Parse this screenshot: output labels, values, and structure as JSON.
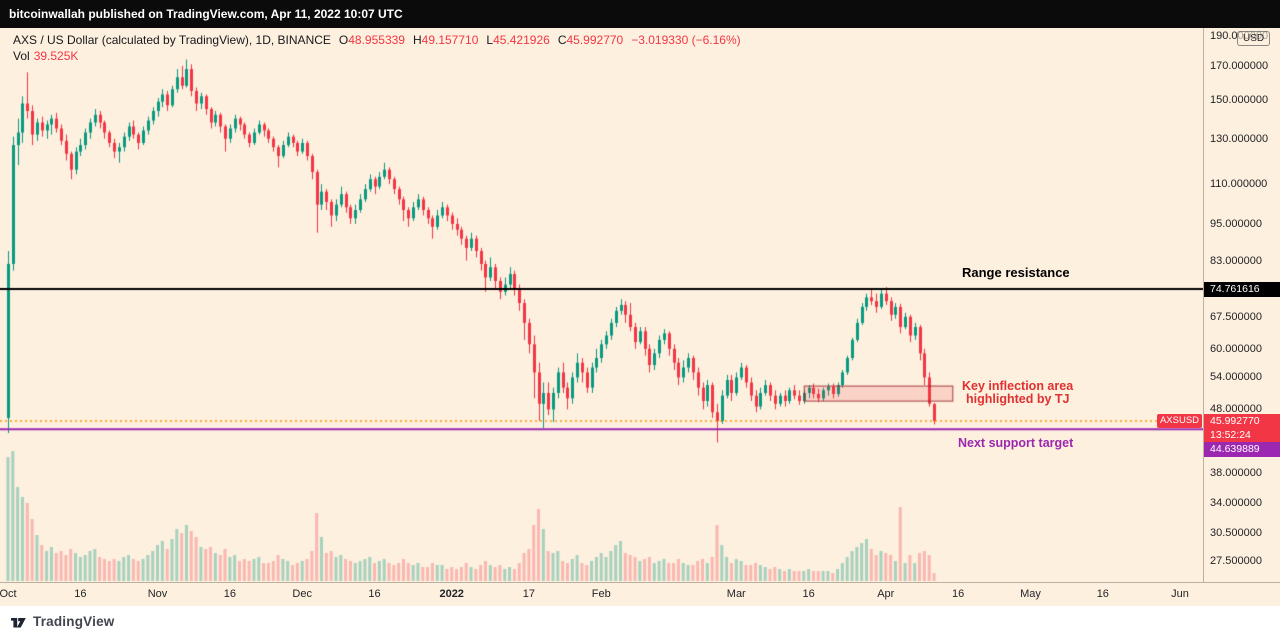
{
  "topbar": {
    "text": "bitcoinwallah published on TradingView.com, Apr 11, 2022 10:07 UTC"
  },
  "header": {
    "symbol": "AXS / US Dollar (calculated by TradingView), 1D, BINANCE",
    "o_label": "O",
    "o_value": "48.955339",
    "h_label": "H",
    "h_value": "49.157710",
    "l_label": "L",
    "l_value": "45.421926",
    "c_label": "C",
    "c_value": "45.992770",
    "change": "−3.019330 (−6.16%)",
    "vol_label": "Vol",
    "vol_value": "39.525K"
  },
  "footer": {
    "brand": "TradingView"
  },
  "chart_data": {
    "type": "candlestick",
    "symbol": "AXSUSD",
    "exchange": "BINANCE",
    "interval": "1D",
    "scale": "logarithmic",
    "x_unit": "days since 2021-10-01",
    "visible_price_range": [
      25.6,
      199.7
    ],
    "colors": {
      "up": "#089981",
      "down": "#f23645",
      "volume_up": "rgba(8,153,129,0.35)",
      "volume_down": "rgba(242,54,69,0.30)",
      "background": "#fdf0df"
    },
    "price_axis": {
      "currency": "USD",
      "ticks": [
        190,
        170,
        150,
        130,
        110,
        95,
        83,
        67.5,
        60,
        54,
        48,
        38,
        34,
        30.5,
        27.5
      ]
    },
    "time_axis": {
      "ticks": [
        {
          "label": "Oct",
          "day": 0
        },
        {
          "label": "16",
          "day": 15
        },
        {
          "label": "Nov",
          "day": 31
        },
        {
          "label": "16",
          "day": 46
        },
        {
          "label": "Dec",
          "day": 61
        },
        {
          "label": "16",
          "day": 76
        },
        {
          "label": "2022",
          "day": 92,
          "bold": true
        },
        {
          "label": "17",
          "day": 108
        },
        {
          "label": "Feb",
          "day": 123
        },
        {
          "label": "Mar",
          "day": 151
        },
        {
          "label": "16",
          "day": 166
        },
        {
          "label": "Apr",
          "day": 182
        },
        {
          "label": "16",
          "day": 197
        },
        {
          "label": "May",
          "day": 212
        },
        {
          "label": "16",
          "day": 227
        },
        {
          "label": "Jun",
          "day": 243
        }
      ]
    },
    "annotations": {
      "resistance_line": {
        "price": 74.761616,
        "axis_label": "74.761616",
        "label": "Range resistance",
        "color": "#000000"
      },
      "current_price_line": {
        "price": 45.99277,
        "axis_label": "45.992770",
        "tag": "AXSUSD",
        "countdown": "13:52:24",
        "line_color": "#ff9800",
        "badge_color": "#f23645"
      },
      "support_line": {
        "price": 44.639889,
        "axis_label": "44.639889",
        "label": "Next support target",
        "color": "#9c27b0"
      },
      "inflection_box": {
        "day_start": 165,
        "day_end": 196,
        "price_top": 52.4,
        "price_bottom": 49.4,
        "fill": "rgba(242,54,69,0.16)",
        "border": "rgba(150,40,45,0.85)",
        "label_line1": "Key inflection area",
        "label_line2": "highlighted by TJ",
        "label_color": "#e03131"
      }
    },
    "candles": [
      [
        46.5,
        86,
        44,
        82,
        620
      ],
      [
        82,
        131,
        80,
        127,
        650
      ],
      [
        127,
        140,
        118,
        133,
        470
      ],
      [
        133,
        152,
        128,
        148,
        420
      ],
      [
        148,
        166,
        140,
        144,
        390
      ],
      [
        144,
        147,
        127,
        132,
        310
      ],
      [
        132,
        140,
        129,
        138,
        230
      ],
      [
        138,
        141,
        131,
        134,
        180
      ],
      [
        134,
        139,
        130,
        137,
        150
      ],
      [
        137,
        142,
        132,
        140,
        170
      ],
      [
        140,
        143,
        133,
        135,
        140
      ],
      [
        135,
        137,
        127,
        129,
        150
      ],
      [
        129,
        132,
        120,
        123,
        130
      ],
      [
        123,
        124,
        112,
        116,
        160
      ],
      [
        116,
        126,
        114,
        124,
        140
      ],
      [
        124,
        130,
        122,
        127,
        120
      ],
      [
        127,
        135,
        125,
        133,
        130
      ],
      [
        133,
        140,
        130,
        138,
        150
      ],
      [
        138,
        145,
        136,
        142,
        160
      ],
      [
        142,
        144,
        135,
        138,
        120
      ],
      [
        138,
        139,
        130,
        133,
        110
      ],
      [
        133,
        134,
        126,
        128,
        100
      ],
      [
        128,
        130,
        121,
        124,
        110
      ],
      [
        124,
        128,
        119,
        126,
        100
      ],
      [
        126,
        133,
        124,
        131,
        120
      ],
      [
        131,
        138,
        129,
        136,
        130
      ],
      [
        136,
        139,
        130,
        132,
        110
      ],
      [
        132,
        133,
        125,
        128,
        100
      ],
      [
        128,
        136,
        127,
        134,
        110
      ],
      [
        134,
        141,
        132,
        139,
        130
      ],
      [
        139,
        146,
        137,
        144,
        150
      ],
      [
        144,
        151,
        141,
        149,
        180
      ],
      [
        149,
        156,
        146,
        153,
        200
      ],
      [
        153,
        155,
        144,
        147,
        160
      ],
      [
        147,
        158,
        146,
        156,
        210
      ],
      [
        156,
        168,
        154,
        163,
        260
      ],
      [
        163,
        170,
        156,
        158,
        240
      ],
      [
        158,
        174,
        157,
        168,
        280
      ],
      [
        168,
        171,
        152,
        155,
        250
      ],
      [
        155,
        157,
        144,
        148,
        220
      ],
      [
        148,
        154,
        145,
        152,
        170
      ],
      [
        152,
        153,
        142,
        145,
        160
      ],
      [
        145,
        146,
        135,
        138,
        170
      ],
      [
        138,
        144,
        136,
        142,
        140
      ],
      [
        142,
        143,
        133,
        136,
        130
      ],
      [
        136,
        137,
        124,
        130,
        160
      ],
      [
        130,
        137,
        128,
        135,
        120
      ],
      [
        135,
        142,
        133,
        140,
        130
      ],
      [
        140,
        141,
        134,
        137,
        100
      ],
      [
        137,
        138,
        130,
        132,
        110
      ],
      [
        132,
        133,
        126,
        128,
        100
      ],
      [
        128,
        135,
        127,
        133,
        110
      ],
      [
        133,
        139,
        132,
        137,
        120
      ],
      [
        137,
        138,
        131,
        134,
        90
      ],
      [
        134,
        135,
        128,
        130,
        90
      ],
      [
        130,
        131,
        124,
        126,
        100
      ],
      [
        126,
        127,
        117,
        122,
        130
      ],
      [
        122,
        129,
        121,
        127,
        110
      ],
      [
        127,
        133,
        126,
        131,
        100
      ],
      [
        131,
        132,
        126,
        128,
        80
      ],
      [
        128,
        129,
        122,
        124,
        90
      ],
      [
        124,
        130,
        123,
        128,
        100
      ],
      [
        128,
        129,
        120,
        122,
        110
      ],
      [
        122,
        123,
        112,
        115,
        150
      ],
      [
        115,
        116,
        92,
        102,
        340
      ],
      [
        102,
        110,
        100,
        107,
        220
      ],
      [
        107,
        108,
        100,
        103,
        140
      ],
      [
        103,
        104,
        94,
        98,
        150
      ],
      [
        98,
        104,
        96,
        102,
        120
      ],
      [
        102,
        109,
        101,
        106,
        130
      ],
      [
        106,
        107,
        99,
        101,
        110
      ],
      [
        101,
        102,
        95,
        97,
        100
      ],
      [
        97,
        102,
        95,
        100,
        90
      ],
      [
        100,
        106,
        99,
        104,
        100
      ],
      [
        104,
        110,
        103,
        108,
        110
      ],
      [
        108,
        114,
        107,
        112,
        120
      ],
      [
        112,
        113,
        106,
        109,
        90
      ],
      [
        109,
        115,
        108,
        113,
        100
      ],
      [
        113,
        119,
        112,
        116,
        110
      ],
      [
        116,
        117,
        110,
        112,
        90
      ],
      [
        112,
        113,
        106,
        108,
        80
      ],
      [
        108,
        109,
        102,
        104,
        90
      ],
      [
        104,
        105,
        96,
        100,
        110
      ],
      [
        100,
        101,
        94,
        97,
        90
      ],
      [
        97,
        103,
        96,
        101,
        80
      ],
      [
        101,
        106,
        100,
        104,
        90
      ],
      [
        104,
        105,
        98,
        100,
        70
      ],
      [
        100,
        101,
        95,
        97,
        70
      ],
      [
        97,
        98,
        90,
        94,
        90
      ],
      [
        94,
        100,
        93,
        98,
        80
      ],
      [
        98,
        103,
        97,
        101,
        80
      ],
      [
        101,
        102,
        96,
        98,
        60
      ],
      [
        98,
        99,
        93,
        95,
        70
      ],
      [
        95,
        97,
        91,
        93,
        60
      ],
      [
        93,
        94,
        88,
        90,
        70
      ],
      [
        90,
        91,
        83,
        87,
        90
      ],
      [
        87,
        92,
        86,
        90,
        70
      ],
      [
        90,
        91,
        84,
        86,
        60
      ],
      [
        86,
        87,
        80,
        82,
        80
      ],
      [
        82,
        83,
        74,
        78,
        100
      ],
      [
        78,
        84,
        77,
        81,
        80
      ],
      [
        81,
        82,
        75,
        77,
        70
      ],
      [
        77,
        78,
        72,
        74,
        80
      ],
      [
        74,
        78,
        73,
        76,
        60
      ],
      [
        76,
        81,
        75,
        79,
        70
      ],
      [
        79,
        80,
        73,
        75,
        60
      ],
      [
        75,
        76,
        69,
        71,
        90
      ],
      [
        71,
        72,
        62,
        66,
        140
      ],
      [
        66,
        67,
        59,
        61,
        160
      ],
      [
        61,
        63,
        50,
        55,
        280
      ],
      [
        55,
        57,
        46,
        49,
        360
      ],
      [
        49,
        53,
        44.8,
        51,
        260
      ],
      [
        51,
        53,
        47,
        48,
        150
      ],
      [
        48,
        52,
        45.8,
        51,
        140
      ],
      [
        51,
        56,
        50,
        55,
        150
      ],
      [
        55,
        57,
        51,
        52,
        100
      ],
      [
        52,
        53,
        48,
        50,
        90
      ],
      [
        50,
        55,
        49,
        54,
        110
      ],
      [
        54,
        59,
        53,
        57,
        130
      ],
      [
        57,
        58,
        53,
        55,
        90
      ],
      [
        55,
        56,
        51,
        52,
        80
      ],
      [
        52,
        57,
        51,
        56,
        100
      ],
      [
        56,
        60,
        55,
        58,
        120
      ],
      [
        58,
        62,
        57,
        61,
        140
      ],
      [
        61,
        64,
        60,
        63,
        120
      ],
      [
        63,
        67,
        62,
        66,
        150
      ],
      [
        66,
        70,
        65,
        69,
        180
      ],
      [
        69,
        72,
        68,
        70.5,
        200
      ],
      [
        70.5,
        71.5,
        66,
        68,
        140
      ],
      [
        68,
        71,
        64,
        65,
        130
      ],
      [
        65,
        66,
        60,
        61.5,
        120
      ],
      [
        61.5,
        65,
        61,
        64,
        100
      ],
      [
        64,
        65,
        58.5,
        60,
        110
      ],
      [
        60,
        61,
        55,
        56.5,
        120
      ],
      [
        56.5,
        60,
        55.5,
        59,
        90
      ],
      [
        59,
        63,
        58,
        62,
        100
      ],
      [
        62,
        64.5,
        61,
        63.5,
        110
      ],
      [
        63.5,
        64,
        58.5,
        60,
        90
      ],
      [
        60,
        61,
        55.5,
        57,
        90
      ],
      [
        57,
        58,
        52.5,
        54,
        110
      ],
      [
        54,
        57.5,
        53,
        56,
        90
      ],
      [
        56,
        59,
        55,
        58,
        80
      ],
      [
        58,
        58.5,
        53.5,
        55,
        80
      ],
      [
        55,
        56,
        50.5,
        52,
        100
      ],
      [
        52,
        53,
        48,
        49.5,
        110
      ],
      [
        49.5,
        53.5,
        48.5,
        52.5,
        90
      ],
      [
        52.5,
        53,
        46.5,
        47.5,
        120
      ],
      [
        47.5,
        49,
        42.5,
        46,
        280
      ],
      [
        46,
        51.5,
        45.5,
        50.5,
        180
      ],
      [
        50.5,
        54.5,
        50,
        53.5,
        120
      ],
      [
        53.5,
        54.5,
        49.5,
        51,
        90
      ],
      [
        51,
        55,
        50.5,
        54,
        110
      ],
      [
        54,
        57,
        53.5,
        56,
        100
      ],
      [
        56,
        56.5,
        52,
        53,
        80
      ],
      [
        53,
        54,
        49.5,
        50.5,
        80
      ],
      [
        50.5,
        51.5,
        47.5,
        48.5,
        90
      ],
      [
        48.5,
        52,
        48,
        51,
        80
      ],
      [
        51,
        53.5,
        50.5,
        52.5,
        70
      ],
      [
        52.5,
        53,
        49.5,
        50.5,
        60
      ],
      [
        50.5,
        51.5,
        48,
        49,
        70
      ],
      [
        49,
        51,
        48.5,
        50.5,
        60
      ],
      [
        50.5,
        51.5,
        48.5,
        49.5,
        50
      ],
      [
        49.5,
        52,
        49,
        51.5,
        60
      ],
      [
        51.5,
        52.5,
        49.8,
        50.5,
        50
      ],
      [
        50.5,
        51.5,
        48.8,
        49.5,
        50
      ],
      [
        49.5,
        51.5,
        49,
        51,
        50
      ],
      [
        51,
        52.5,
        50,
        52,
        60
      ],
      [
        52,
        52.8,
        50,
        50.8,
        50
      ],
      [
        50.8,
        51.8,
        49.3,
        50,
        50
      ],
      [
        50,
        52,
        49.5,
        51.5,
        50
      ],
      [
        51.5,
        52.8,
        50.5,
        52.2,
        50
      ],
      [
        52.2,
        52.8,
        50,
        50.8,
        40
      ],
      [
        50.8,
        53,
        50.3,
        52.5,
        60
      ],
      [
        52.5,
        55.5,
        52,
        55,
        90
      ],
      [
        55,
        58.5,
        54.5,
        58,
        120
      ],
      [
        58,
        62.5,
        57.5,
        62,
        150
      ],
      [
        62,
        67,
        61.5,
        66,
        170
      ],
      [
        66,
        71,
        65.5,
        70,
        190
      ],
      [
        70,
        73.5,
        69,
        72.5,
        210
      ],
      [
        72.5,
        74.6,
        70.5,
        71.5,
        160
      ],
      [
        71.5,
        73.5,
        68.5,
        70,
        130
      ],
      [
        70,
        74.8,
        69.5,
        73.5,
        150
      ],
      [
        73.5,
        75.3,
        70.5,
        71.5,
        140
      ],
      [
        71.5,
        72.5,
        66.5,
        68,
        130
      ],
      [
        68,
        71,
        67,
        70,
        100
      ],
      [
        70,
        70.8,
        63.5,
        65,
        370
      ],
      [
        65,
        68.5,
        64.5,
        67.5,
        90
      ],
      [
        67.5,
        68,
        61.5,
        63,
        130
      ],
      [
        63,
        66,
        62,
        65,
        90
      ],
      [
        65,
        65.5,
        57.5,
        59,
        140
      ],
      [
        59,
        60,
        52.5,
        54,
        150
      ],
      [
        54,
        55,
        48.5,
        49,
        130
      ],
      [
        48.955339,
        49.15771,
        45.421926,
        45.99277,
        39.525
      ]
    ]
  }
}
